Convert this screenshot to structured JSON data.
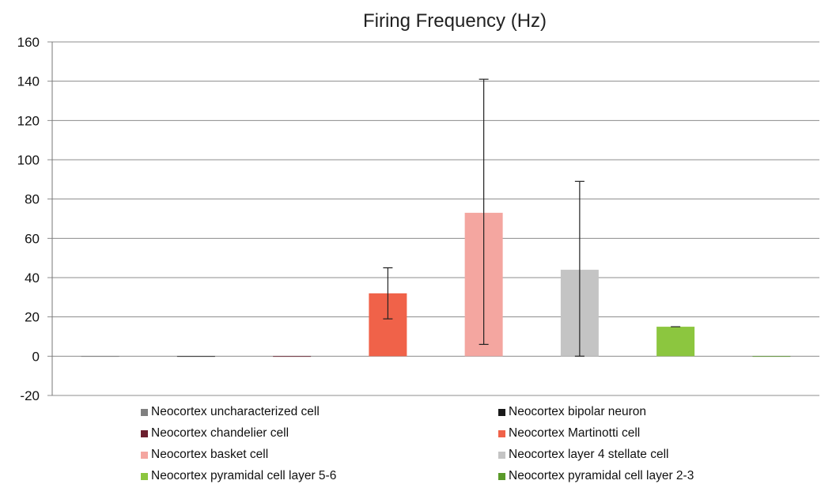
{
  "chart_data": {
    "type": "bar",
    "title": "Firing Frequency (Hz)",
    "xlabel": "",
    "ylabel": "",
    "ylim": [
      -20,
      160
    ],
    "yticks": [
      160,
      140,
      120,
      100,
      80,
      60,
      40,
      20,
      0,
      -20
    ],
    "grid": true,
    "legend_position": "bottom",
    "series": [
      {
        "name": "Neocortex uncharacterized cell",
        "value": 0,
        "error_low": 0,
        "error_high": 0,
        "color": "#808080"
      },
      {
        "name": "Neocortex bipolar neuron",
        "value": 0,
        "error_low": 0,
        "error_high": 0,
        "color": "#1a1a1a"
      },
      {
        "name": "Neocortex chandelier cell",
        "value": 0,
        "error_low": 0,
        "error_high": 0,
        "color": "#6b1f2e"
      },
      {
        "name": "Neocortex Martinotti cell",
        "value": 32,
        "error_low": 19,
        "error_high": 45,
        "color": "#f06249"
      },
      {
        "name": "Neocortex basket cell",
        "value": 73,
        "error_low": 6,
        "error_high": 141,
        "color": "#f4a6a0"
      },
      {
        "name": "Neocortex layer 4 stellate cell",
        "value": 44,
        "error_low": 0,
        "error_high": 89,
        "color": "#c4c4c4"
      },
      {
        "name": "Neocortex pyramidal cell layer 5-6",
        "value": 15,
        "error_low": 15,
        "error_high": 15,
        "color": "#8cc63f"
      },
      {
        "name": "Neocortex pyramidal cell layer 2-3",
        "value": 0,
        "error_low": 0,
        "error_high": 0,
        "color": "#5a9a2a"
      }
    ]
  }
}
